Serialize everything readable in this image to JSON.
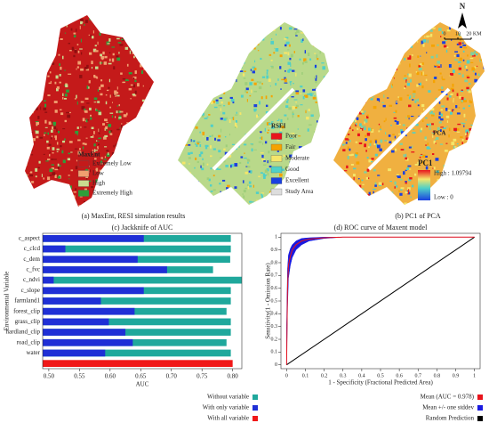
{
  "maps": {
    "panel_a": {
      "legend_title": "MaxEnt",
      "legend_items": [
        {
          "label": "Extremely Low",
          "color": "#c41a1a"
        },
        {
          "label": "Low",
          "color": "#f0a070"
        },
        {
          "label": "High",
          "color": "#c9dc8f"
        },
        {
          "label": "Extremely High",
          "color": "#2e9e3a"
        }
      ]
    },
    "panel_b": {
      "legend_title": "RSEI",
      "legend_items": [
        {
          "label": "Poor",
          "color": "#e8141c"
        },
        {
          "label": "Fair",
          "color": "#f5a300"
        },
        {
          "label": "Moderate",
          "color": "#f5e66a"
        },
        {
          "label": "Good",
          "color": "#4fd0c8"
        },
        {
          "label": "Excellent",
          "color": "#1a40e0"
        },
        {
          "label": "Study Area",
          "color": "#dddddd"
        }
      ]
    },
    "panel_c": {
      "label": "PCA",
      "legend_title": "PC1",
      "high": "High : 1.09794",
      "low": "Low : 0"
    },
    "north": "N",
    "scale": [
      "0",
      "10",
      "20 KM"
    ],
    "caption_a": "(a) MaxEnt, RESI simulation results",
    "caption_b": "(b) PC1 of PCA"
  },
  "chart_data": [
    {
      "type": "bar",
      "orientation": "horizontal",
      "title": "(c) Jackknife of AUC",
      "x_label": "AUC",
      "y_label": "Environmental Variable",
      "categories": [
        "c_aspect",
        "c_clcd",
        "c_dem",
        "c_fvc",
        "c_ndvi",
        "c_slope",
        "farmland1",
        "forest_clip",
        "grass_clip",
        "hardland_clip",
        "road_clip",
        "water",
        null
      ],
      "series": [
        {
          "name": "Without variable",
          "color": "#1fa89c",
          "values": [
            0.797,
            0.797,
            0.796,
            0.768,
            0.815,
            0.797,
            0.797,
            0.79,
            0.797,
            0.797,
            0.79,
            0.797,
            null
          ]
        },
        {
          "name": "With only variable",
          "color": "#1f2fd6",
          "values": [
            0.655,
            0.527,
            0.645,
            0.693,
            0.508,
            0.655,
            0.585,
            0.64,
            0.598,
            0.625,
            0.637,
            0.592,
            null
          ]
        },
        {
          "name": "With all variable",
          "color": "#f01818",
          "values": [
            null,
            null,
            null,
            null,
            null,
            null,
            null,
            null,
            null,
            null,
            null,
            null,
            0.8
          ]
        }
      ],
      "xlim": [
        0.49,
        0.815
      ],
      "xticks": [
        {
          "value": 0.5,
          "label": "0.50"
        },
        0.55,
        {
          "value": 0.6,
          "label": "0.60"
        },
        0.65,
        {
          "value": 0.7,
          "label": "0.70"
        },
        0.75,
        {
          "value": 0.8,
          "label": "0.80"
        }
      ]
    },
    {
      "type": "line",
      "title": "(d) ROC curve of Maxent model",
      "x_label": "1 - Specificity (Fractional Predicted Area)",
      "y_label": "Sensitivity(1 - Omission Rate)",
      "xlim": [
        -0.03,
        1.03
      ],
      "ylim": [
        -0.03,
        1.03
      ],
      "xticks": [
        0,
        0.1,
        0.2,
        0.3,
        0.4,
        0.5,
        0.6,
        0.7,
        0.8,
        0.9,
        1
      ],
      "yticks": [
        0,
        0.1,
        0.2,
        0.3,
        0.4,
        0.5,
        0.6,
        0.7,
        0.8,
        0.9,
        1
      ],
      "series": [
        {
          "name": "Mean (AUC = 0.978)",
          "color": "#e8141c",
          "x": [
            0,
            0.005,
            0.01,
            0.02,
            0.03,
            0.05,
            0.08,
            0.12,
            0.2,
            0.3,
            1
          ],
          "values": [
            0,
            0.6,
            0.78,
            0.85,
            0.9,
            0.94,
            0.97,
            0.985,
            0.995,
            1,
            1
          ]
        },
        {
          "name": "Mean +/- one stddev",
          "color": "#1a1ae0",
          "x": [
            0,
            0.005,
            0.01,
            0.02,
            0.03,
            0.05,
            0.08,
            0.12,
            0.2,
            0.3,
            1
          ],
          "upper": [
            0.3,
            0.75,
            0.86,
            0.91,
            0.94,
            0.97,
            0.99,
            0.995,
            1,
            1,
            1
          ],
          "lower": [
            0,
            0.45,
            0.68,
            0.78,
            0.84,
            0.9,
            0.94,
            0.97,
            0.99,
            1,
            1
          ]
        },
        {
          "name": "Random Prediction",
          "color": "#000000",
          "x": [
            0,
            1
          ],
          "values": [
            0,
            1
          ]
        }
      ]
    }
  ]
}
